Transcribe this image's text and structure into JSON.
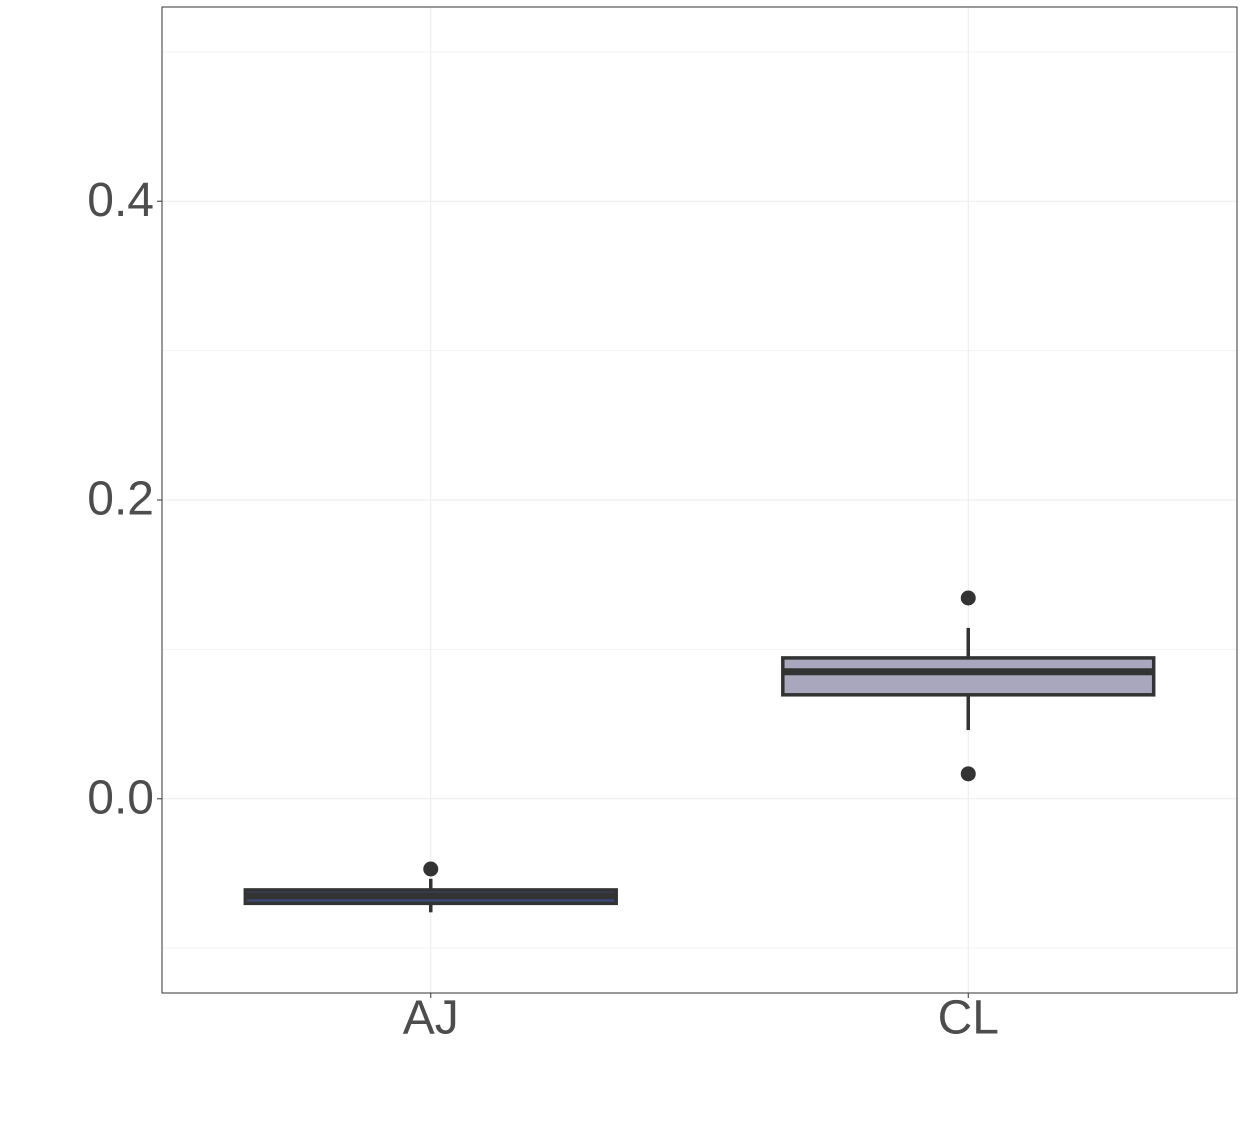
{
  "chart_data": {
    "type": "box",
    "categories": [
      "AJ",
      "CL"
    ],
    "boxes": [
      {
        "whisker_low": -0.076,
        "q1": -0.07,
        "median": -0.065,
        "q3": -0.061,
        "whisker_high": -0.0535,
        "outliers": [
          -0.047
        ],
        "color": "#3b4a7a"
      },
      {
        "whisker_low": 0.046,
        "q1": 0.0696,
        "median": 0.085,
        "q3": 0.0943,
        "whisker_high": 0.1144,
        "outliers": [
          0.1344,
          0.0167
        ],
        "color": "#a9a7bd"
      }
    ],
    "ylim": [
      -0.13,
      0.53
    ],
    "yticks": [
      {
        "value": 0,
        "label": "0.0"
      },
      0.2,
      0.4
    ],
    "minor_yticks": [
      -0.1,
      0.1,
      0.3,
      0.5
    ],
    "grid": true
  }
}
